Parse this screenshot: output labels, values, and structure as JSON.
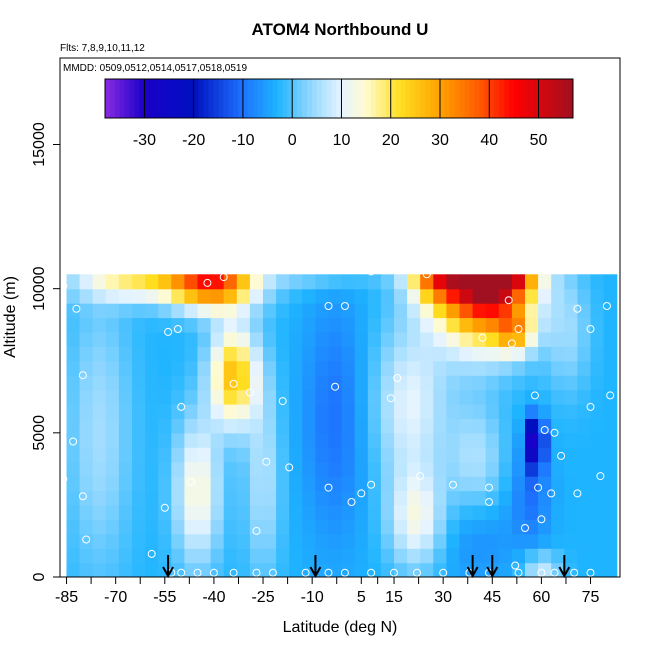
{
  "chart_data": {
    "type": "heatmap",
    "title": "ATOM4 Northbound U",
    "flights_note": "Flts: 7,8,9,10,11,12",
    "dates_note": "MMDD: 0509,0512,0514,0517,0518,0519",
    "xlabel": "Latitude (deg N)",
    "ylabel": "Altitude (m)",
    "xlim": [
      -87,
      84
    ],
    "ylim": [
      0,
      18000
    ],
    "x_ticks": [
      -85,
      -70,
      -55,
      -40,
      -25,
      -10,
      5,
      15,
      30,
      45,
      60,
      75
    ],
    "y_ticks": [
      0,
      5000,
      10000,
      15000
    ],
    "colorbar": {
      "range": [
        -38,
        57
      ],
      "ticks": [
        -30,
        -20,
        -10,
        0,
        10,
        20,
        30,
        40,
        50
      ],
      "stops": [
        {
          "v": -38,
          "c": "#8a2be2"
        },
        {
          "v": -30,
          "c": "#1a00c8"
        },
        {
          "v": -20,
          "c": "#0010c0"
        },
        {
          "v": -10,
          "c": "#1e73ff"
        },
        {
          "v": -3,
          "c": "#1eb4ff"
        },
        {
          "v": 3,
          "c": "#87d4ff"
        },
        {
          "v": 10,
          "c": "#e6f4ff"
        },
        {
          "v": 15,
          "c": "#fffbd0"
        },
        {
          "v": 22,
          "c": "#ffde20"
        },
        {
          "v": 30,
          "c": "#ffa200"
        },
        {
          "v": 38,
          "c": "#ff5a00"
        },
        {
          "v": 45,
          "c": "#ff0000"
        },
        {
          "v": 57,
          "c": "#a01020"
        }
      ]
    },
    "field": {
      "background_value": -3,
      "lat_extent": [
        -85,
        83
      ],
      "alt_extent": [
        0,
        10500
      ],
      "features": [
        {
          "lat": -40,
          "alt": 10300,
          "value": 38,
          "rlat": 9,
          "ralt": 700
        },
        {
          "lat": -62,
          "alt": 10300,
          "value": 18,
          "rlat": 14,
          "ralt": 500
        },
        {
          "lat": -34,
          "alt": 7000,
          "value": 26,
          "rlat": 5,
          "ralt": 1200
        },
        {
          "lat": 42,
          "alt": 10300,
          "value": 52,
          "rlat": 10,
          "ralt": 1500
        },
        {
          "lat": 48,
          "alt": 11200,
          "value": 48,
          "rlat": 7,
          "ralt": 900
        },
        {
          "lat": 28,
          "alt": 10800,
          "value": 30,
          "rlat": 6,
          "ralt": 800
        },
        {
          "lat": -10,
          "alt": 11200,
          "value": 14,
          "rlat": 12,
          "ralt": 600
        },
        {
          "lat": 18,
          "alt": 11500,
          "value": 22,
          "rlat": 8,
          "ralt": 500
        },
        {
          "lat": 20,
          "alt": 6000,
          "value": 10,
          "rlat": 8,
          "ralt": 2000
        },
        {
          "lat": 22,
          "alt": 2000,
          "value": 12,
          "rlat": 6,
          "ralt": 1200
        },
        {
          "lat": -45,
          "alt": 3000,
          "value": 14,
          "rlat": 5,
          "ralt": 1800
        },
        {
          "lat": 58,
          "alt": 4700,
          "value": -30,
          "rlat": 2,
          "ralt": 600
        },
        {
          "lat": 57,
          "alt": 3000,
          "value": -10,
          "rlat": 4,
          "ralt": 1300
        },
        {
          "lat": 40,
          "alt": 4000,
          "value": 6,
          "rlat": 6,
          "ralt": 1500
        },
        {
          "lat": -25,
          "alt": 3500,
          "value": 6,
          "rlat": 4,
          "ralt": 2500
        },
        {
          "lat": -75,
          "alt": 5000,
          "value": 5,
          "rlat": 7,
          "ralt": 3500
        },
        {
          "lat": -3,
          "alt": 5500,
          "value": -10,
          "rlat": 7,
          "ralt": 3000
        },
        {
          "lat": 68,
          "alt": 8500,
          "value": 4,
          "rlat": 5,
          "ralt": 1500
        },
        {
          "lat": 52,
          "alt": 8500,
          "value": 18,
          "rlat": 4,
          "ralt": 500
        },
        {
          "lat": 40,
          "alt": 1500,
          "value": -8,
          "rlat": 9,
          "ralt": 1200
        },
        {
          "lat": 60,
          "alt": 300,
          "value": 8,
          "rlat": 4,
          "ralt": 400
        }
      ]
    },
    "sample_points": [
      {
        "lat": -86,
        "alt": 10100
      },
      {
        "lat": -82,
        "alt": 9300
      },
      {
        "lat": -80,
        "alt": 7000
      },
      {
        "lat": -83,
        "alt": 4700
      },
      {
        "lat": -80,
        "alt": 2800
      },
      {
        "lat": -86,
        "alt": 3400
      },
      {
        "lat": -79,
        "alt": 1300
      },
      {
        "lat": -70,
        "alt": 10800
      },
      {
        "lat": -54,
        "alt": 8500
      },
      {
        "lat": -51,
        "alt": 8600
      },
      {
        "lat": -50,
        "alt": 5900
      },
      {
        "lat": -42,
        "alt": 10200
      },
      {
        "lat": -37,
        "alt": 10400
      },
      {
        "lat": -33,
        "alt": 10900
      },
      {
        "lat": -34,
        "alt": 6700
      },
      {
        "lat": -29,
        "alt": 6400
      },
      {
        "lat": -24,
        "alt": 4000
      },
      {
        "lat": -19,
        "alt": 6100
      },
      {
        "lat": -17,
        "alt": 3800
      },
      {
        "lat": -27,
        "alt": 1600
      },
      {
        "lat": -47,
        "alt": 3300
      },
      {
        "lat": -55,
        "alt": 2400
      },
      {
        "lat": -59,
        "alt": 800
      },
      {
        "lat": -5,
        "alt": 9400
      },
      {
        "lat": 0,
        "alt": 9400
      },
      {
        "lat": -3,
        "alt": 6600
      },
      {
        "lat": -5,
        "alt": 3100
      },
      {
        "lat": 2,
        "alt": 2600
      },
      {
        "lat": 5,
        "alt": 2900
      },
      {
        "lat": 8,
        "alt": 3200
      },
      {
        "lat": 8,
        "alt": 10600
      },
      {
        "lat": 12,
        "alt": 10700
      },
      {
        "lat": 18,
        "alt": 10700
      },
      {
        "lat": 14,
        "alt": 6200
      },
      {
        "lat": 16,
        "alt": 6900
      },
      {
        "lat": 23,
        "alt": 3500
      },
      {
        "lat": 25,
        "alt": 10500
      },
      {
        "lat": 33,
        "alt": 3200
      },
      {
        "lat": 42,
        "alt": 8300
      },
      {
        "lat": 44,
        "alt": 3100
      },
      {
        "lat": 47,
        "alt": 11600
      },
      {
        "lat": 50,
        "alt": 9600
      },
      {
        "lat": 51,
        "alt": 8100
      },
      {
        "lat": 53,
        "alt": 8600
      },
      {
        "lat": 55,
        "alt": 10800
      },
      {
        "lat": 60,
        "alt": 10800
      },
      {
        "lat": 67,
        "alt": 10800
      },
      {
        "lat": 73,
        "alt": 10800
      },
      {
        "lat": 71,
        "alt": 9300
      },
      {
        "lat": 75,
        "alt": 8600
      },
      {
        "lat": 80,
        "alt": 9400
      },
      {
        "lat": 81,
        "alt": 6300
      },
      {
        "lat": 75,
        "alt": 5900
      },
      {
        "lat": 78,
        "alt": 3500
      },
      {
        "lat": 71,
        "alt": 2900
      },
      {
        "lat": 59,
        "alt": 3100
      },
      {
        "lat": 60,
        "alt": 2000
      },
      {
        "lat": 64,
        "alt": 5000
      },
      {
        "lat": 66,
        "alt": 4200
      },
      {
        "lat": 63,
        "alt": 2900
      },
      {
        "lat": 55,
        "alt": 1700
      },
      {
        "lat": 52,
        "alt": 400
      },
      {
        "lat": 44,
        "alt": 2600
      },
      {
        "lat": 61,
        "alt": 5100
      },
      {
        "lat": 58,
        "alt": 6300
      },
      {
        "lat": -53,
        "alt": 150
      },
      {
        "lat": -50,
        "alt": 150
      },
      {
        "lat": -45,
        "alt": 150
      },
      {
        "lat": -40,
        "alt": 150
      },
      {
        "lat": -34,
        "alt": 150
      },
      {
        "lat": -27,
        "alt": 150
      },
      {
        "lat": -22,
        "alt": 150
      },
      {
        "lat": -12,
        "alt": 150
      },
      {
        "lat": -5,
        "alt": 150
      },
      {
        "lat": 0,
        "alt": 150
      },
      {
        "lat": 8,
        "alt": 150
      },
      {
        "lat": 15,
        "alt": 150
      },
      {
        "lat": 22,
        "alt": 150
      },
      {
        "lat": 30,
        "alt": 150
      },
      {
        "lat": 38,
        "alt": 150
      },
      {
        "lat": 44,
        "alt": 150
      },
      {
        "lat": 53,
        "alt": 150
      },
      {
        "lat": 60,
        "alt": 150
      },
      {
        "lat": 64,
        "alt": 150
      },
      {
        "lat": 70,
        "alt": 150
      },
      {
        "lat": 75,
        "alt": 150
      }
    ],
    "arrow_latitudes": [
      -54,
      -9,
      39,
      45,
      67
    ]
  }
}
